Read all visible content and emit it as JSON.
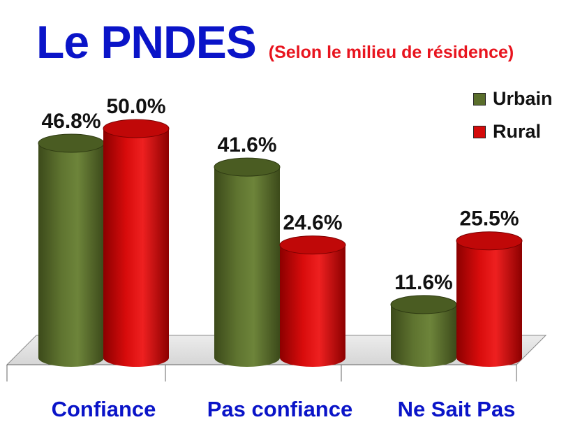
{
  "title": "Le PNDES",
  "subtitle": "(Selon le milieu de résidence)",
  "colors": {
    "urbain": "#5a6e2b",
    "rural": "#d40a0a",
    "category_text": "#0a14c8"
  },
  "chart_data": {
    "type": "bar",
    "categories": [
      "Confiance",
      "Pas confiance",
      "Ne Sait Pas"
    ],
    "series": [
      {
        "name": "Urbain",
        "values": [
          46.8,
          41.6,
          11.6
        ],
        "labels": [
          "46.8%",
          "41.6%",
          "11.6%"
        ]
      },
      {
        "name": "Rural",
        "values": [
          50.0,
          24.6,
          25.5
        ],
        "labels": [
          "50.0%",
          "24.6%",
          "25.5%"
        ]
      }
    ],
    "ylim": [
      0,
      50
    ],
    "grid": false,
    "legend_position": "top-right"
  }
}
